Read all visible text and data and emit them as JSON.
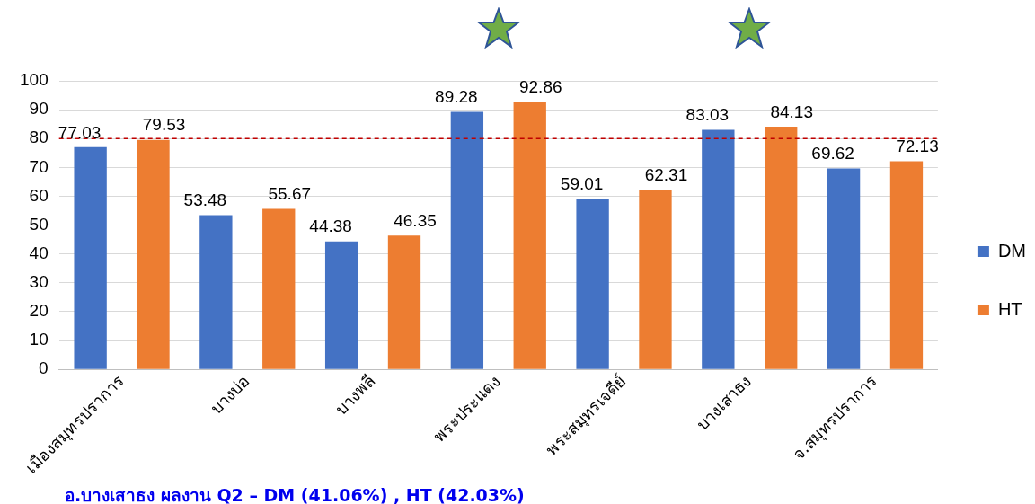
{
  "chart_data": {
    "type": "bar",
    "categories": [
      "เมืองสมุทรปราการ",
      "บางบ่อ",
      "บางพลี",
      "พระประแดง",
      "พระสมุทรเจดีย์",
      "บางเสาธง",
      "จ.สมุทรปราการ"
    ],
    "series": [
      {
        "name": "DM",
        "color": "#4472c4",
        "values": [
          77.03,
          53.48,
          44.38,
          89.28,
          59.01,
          83.03,
          69.62
        ]
      },
      {
        "name": "HT",
        "color": "#ed7d31",
        "values": [
          79.53,
          55.67,
          46.35,
          92.86,
          62.31,
          84.13,
          72.13
        ]
      }
    ],
    "ylim": [
      0,
      100
    ],
    "yticks": [
      0,
      10,
      20,
      30,
      40,
      50,
      60,
      70,
      80,
      90,
      100
    ],
    "grid": "y",
    "legend": "right",
    "data_labels": true,
    "ref_lines": [
      {
        "axis": "y",
        "value": 80,
        "color": "#c00000",
        "line_style": "dashed"
      }
    ],
    "annotations": [
      "อ.บางเสาธง ผลงาน  Q2 – DM  (41.06%) , HT (42.03%)"
    ]
  }
}
